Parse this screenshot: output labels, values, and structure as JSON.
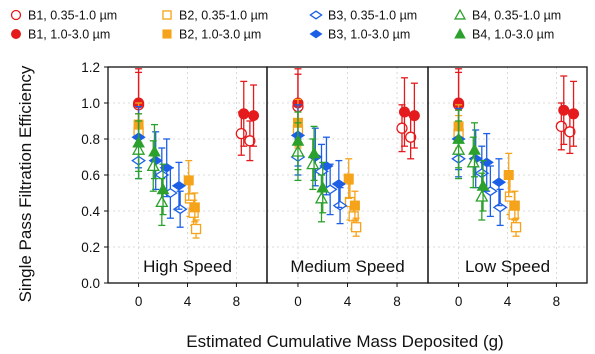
{
  "chart_data": {
    "type": "scatter",
    "ylabel": "Single Pass Filtration Efficiency",
    "xlabel": "Estimated Cumulative Mass Deposited (g)",
    "ylim": [
      0.0,
      1.2
    ],
    "xlim": [
      -2.5,
      10.5
    ],
    "y_ticks": [
      "0.0",
      "0.2",
      "0.4",
      "0.6",
      "0.8",
      "1.0",
      "1.2"
    ],
    "x_ticks": [
      "0",
      "4",
      "8"
    ],
    "grid": true,
    "legend_position": "top",
    "colors": {
      "B1": "#e41a1c",
      "B2": "#f5a31a",
      "B3": "#1c5fe6",
      "B4": "#2ca02c"
    },
    "legend": [
      {
        "id": "b1-small",
        "label": "B1, 0.35-1.0 µm",
        "marker": "circle",
        "filled": false,
        "color": "#e41a1c"
      },
      {
        "id": "b1-large",
        "label": "B1, 1.0-3.0 µm",
        "marker": "circle",
        "filled": true,
        "color": "#e41a1c"
      },
      {
        "id": "b2-small",
        "label": "B2, 0.35-1.0 µm",
        "marker": "square",
        "filled": false,
        "color": "#f5a31a"
      },
      {
        "id": "b2-large",
        "label": "B2, 1.0-3.0 µm",
        "marker": "square",
        "filled": true,
        "color": "#f5a31a"
      },
      {
        "id": "b3-small",
        "label": "B3, 0.35-1.0 µm",
        "marker": "diamond",
        "filled": false,
        "color": "#1c5fe6"
      },
      {
        "id": "b3-large",
        "label": "B3, 1.0-3.0 µm",
        "marker": "diamond",
        "filled": true,
        "color": "#1c5fe6"
      },
      {
        "id": "b4-small",
        "label": "B4, 0.35-1.0 µm",
        "marker": "triangle",
        "filled": false,
        "color": "#2ca02c"
      },
      {
        "id": "b4-large",
        "label": "B4, 1.0-3.0 µm",
        "marker": "triangle",
        "filled": true,
        "color": "#2ca02c"
      }
    ],
    "panels": [
      {
        "label": "High Speed",
        "series": [
          {
            "id": "b1-small",
            "points": [
              {
                "x": 0.0,
                "y": 0.99,
                "err": 0.18
              },
              {
                "x": 8.4,
                "y": 0.83,
                "err": 0.12
              },
              {
                "x": 9.1,
                "y": 0.79,
                "err": 0.11
              }
            ]
          },
          {
            "id": "b1-large",
            "points": [
              {
                "x": 0.0,
                "y": 1.0,
                "err": 0.19
              },
              {
                "x": 8.6,
                "y": 0.94,
                "err": 0.18
              },
              {
                "x": 9.4,
                "y": 0.93,
                "err": 0.17
              }
            ]
          },
          {
            "id": "b2-small",
            "points": [
              {
                "x": 0.0,
                "y": 0.84,
                "err": 0.1
              },
              {
                "x": 4.2,
                "y": 0.47,
                "err": 0.1
              },
              {
                "x": 4.5,
                "y": 0.39,
                "err": 0.07
              },
              {
                "x": 4.7,
                "y": 0.3,
                "err": 0.05
              }
            ]
          },
          {
            "id": "b2-large",
            "points": [
              {
                "x": 0.0,
                "y": 0.88,
                "err": 0.12
              },
              {
                "x": 4.1,
                "y": 0.57,
                "err": 0.11
              },
              {
                "x": 4.6,
                "y": 0.42,
                "err": 0.08
              }
            ]
          },
          {
            "id": "b3-small",
            "points": [
              {
                "x": 0.0,
                "y": 0.68,
                "err": 0.1
              },
              {
                "x": 1.9,
                "y": 0.6,
                "err": 0.15
              },
              {
                "x": 2.6,
                "y": 0.5,
                "err": 0.14
              },
              {
                "x": 3.4,
                "y": 0.41,
                "err": 0.1
              }
            ]
          },
          {
            "id": "b3-large",
            "points": [
              {
                "x": 0.0,
                "y": 0.81,
                "err": 0.17
              },
              {
                "x": 1.4,
                "y": 0.68,
                "err": 0.16
              },
              {
                "x": 2.3,
                "y": 0.64,
                "err": 0.16
              },
              {
                "x": 3.3,
                "y": 0.54,
                "err": 0.13
              }
            ]
          },
          {
            "id": "b4-small",
            "points": [
              {
                "x": 0.0,
                "y": 0.74,
                "err": 0.16
              },
              {
                "x": 1.2,
                "y": 0.65,
                "err": 0.14
              },
              {
                "x": 1.9,
                "y": 0.45,
                "err": 0.13
              }
            ]
          },
          {
            "id": "b4-large",
            "points": [
              {
                "x": 0.0,
                "y": 0.78,
                "err": 0.16
              },
              {
                "x": 1.3,
                "y": 0.73,
                "err": 0.15
              },
              {
                "x": 2.0,
                "y": 0.52,
                "err": 0.14
              }
            ]
          }
        ]
      },
      {
        "label": "Medium Speed",
        "series": [
          {
            "id": "b1-small",
            "points": [
              {
                "x": 0.0,
                "y": 0.98,
                "err": 0.18
              },
              {
                "x": 8.4,
                "y": 0.86,
                "err": 0.13
              },
              {
                "x": 9.1,
                "y": 0.81,
                "err": 0.12
              }
            ]
          },
          {
            "id": "b1-large",
            "points": [
              {
                "x": 0.0,
                "y": 1.0,
                "err": 0.19
              },
              {
                "x": 8.6,
                "y": 0.95,
                "err": 0.19
              },
              {
                "x": 9.4,
                "y": 0.93,
                "err": 0.18
              }
            ]
          },
          {
            "id": "b2-small",
            "points": [
              {
                "x": 0.0,
                "y": 0.85,
                "err": 0.1
              },
              {
                "x": 4.2,
                "y": 0.45,
                "err": 0.1
              },
              {
                "x": 4.5,
                "y": 0.37,
                "err": 0.07
              },
              {
                "x": 4.7,
                "y": 0.31,
                "err": 0.05
              }
            ]
          },
          {
            "id": "b2-large",
            "points": [
              {
                "x": 0.0,
                "y": 0.89,
                "err": 0.13
              },
              {
                "x": 4.1,
                "y": 0.58,
                "err": 0.11
              },
              {
                "x": 4.6,
                "y": 0.43,
                "err": 0.08
              }
            ]
          },
          {
            "id": "b3-small",
            "points": [
              {
                "x": 0.0,
                "y": 0.7,
                "err": 0.1
              },
              {
                "x": 1.9,
                "y": 0.62,
                "err": 0.15
              },
              {
                "x": 2.6,
                "y": 0.52,
                "err": 0.14
              },
              {
                "x": 3.4,
                "y": 0.43,
                "err": 0.1
              }
            ]
          },
          {
            "id": "b3-large",
            "points": [
              {
                "x": 0.0,
                "y": 0.82,
                "err": 0.17
              },
              {
                "x": 1.4,
                "y": 0.7,
                "err": 0.16
              },
              {
                "x": 2.3,
                "y": 0.65,
                "err": 0.16
              },
              {
                "x": 3.3,
                "y": 0.55,
                "err": 0.13
              }
            ]
          },
          {
            "id": "b4-small",
            "points": [
              {
                "x": 0.0,
                "y": 0.73,
                "err": 0.16
              },
              {
                "x": 1.2,
                "y": 0.66,
                "err": 0.14
              },
              {
                "x": 1.9,
                "y": 0.47,
                "err": 0.13
              }
            ]
          },
          {
            "id": "b4-large",
            "points": [
              {
                "x": 0.0,
                "y": 0.79,
                "err": 0.16
              },
              {
                "x": 1.3,
                "y": 0.72,
                "err": 0.15
              },
              {
                "x": 2.0,
                "y": 0.53,
                "err": 0.14
              }
            ]
          }
        ]
      },
      {
        "label": "Low Speed",
        "series": [
          {
            "id": "b1-small",
            "points": [
              {
                "x": 0.0,
                "y": 0.99,
                "err": 0.18
              },
              {
                "x": 8.4,
                "y": 0.87,
                "err": 0.13
              },
              {
                "x": 9.1,
                "y": 0.84,
                "err": 0.12
              }
            ]
          },
          {
            "id": "b1-large",
            "points": [
              {
                "x": 0.0,
                "y": 1.0,
                "err": 0.19
              },
              {
                "x": 8.6,
                "y": 0.96,
                "err": 0.19
              },
              {
                "x": 9.4,
                "y": 0.94,
                "err": 0.18
              }
            ]
          },
          {
            "id": "b2-small",
            "points": [
              {
                "x": 0.0,
                "y": 0.83,
                "err": 0.1
              },
              {
                "x": 4.2,
                "y": 0.48,
                "err": 0.1
              },
              {
                "x": 4.5,
                "y": 0.38,
                "err": 0.07
              },
              {
                "x": 4.7,
                "y": 0.31,
                "err": 0.05
              }
            ]
          },
          {
            "id": "b2-large",
            "points": [
              {
                "x": 0.0,
                "y": 0.87,
                "err": 0.12
              },
              {
                "x": 4.1,
                "y": 0.6,
                "err": 0.12
              },
              {
                "x": 4.6,
                "y": 0.43,
                "err": 0.08
              }
            ]
          },
          {
            "id": "b3-small",
            "points": [
              {
                "x": 0.0,
                "y": 0.69,
                "err": 0.1
              },
              {
                "x": 1.9,
                "y": 0.61,
                "err": 0.15
              },
              {
                "x": 2.6,
                "y": 0.51,
                "err": 0.14
              },
              {
                "x": 3.4,
                "y": 0.42,
                "err": 0.1
              }
            ]
          },
          {
            "id": "b3-large",
            "points": [
              {
                "x": 0.0,
                "y": 0.8,
                "err": 0.17
              },
              {
                "x": 1.4,
                "y": 0.69,
                "err": 0.16
              },
              {
                "x": 2.3,
                "y": 0.67,
                "err": 0.16
              },
              {
                "x": 3.3,
                "y": 0.56,
                "err": 0.13
              }
            ]
          },
          {
            "id": "b4-small",
            "points": [
              {
                "x": 0.0,
                "y": 0.74,
                "err": 0.16
              },
              {
                "x": 1.2,
                "y": 0.67,
                "err": 0.14
              },
              {
                "x": 1.9,
                "y": 0.48,
                "err": 0.13
              }
            ]
          },
          {
            "id": "b4-large",
            "points": [
              {
                "x": 0.0,
                "y": 0.8,
                "err": 0.16
              },
              {
                "x": 1.3,
                "y": 0.74,
                "err": 0.15
              },
              {
                "x": 2.0,
                "y": 0.54,
                "err": 0.14
              }
            ]
          }
        ]
      }
    ]
  }
}
